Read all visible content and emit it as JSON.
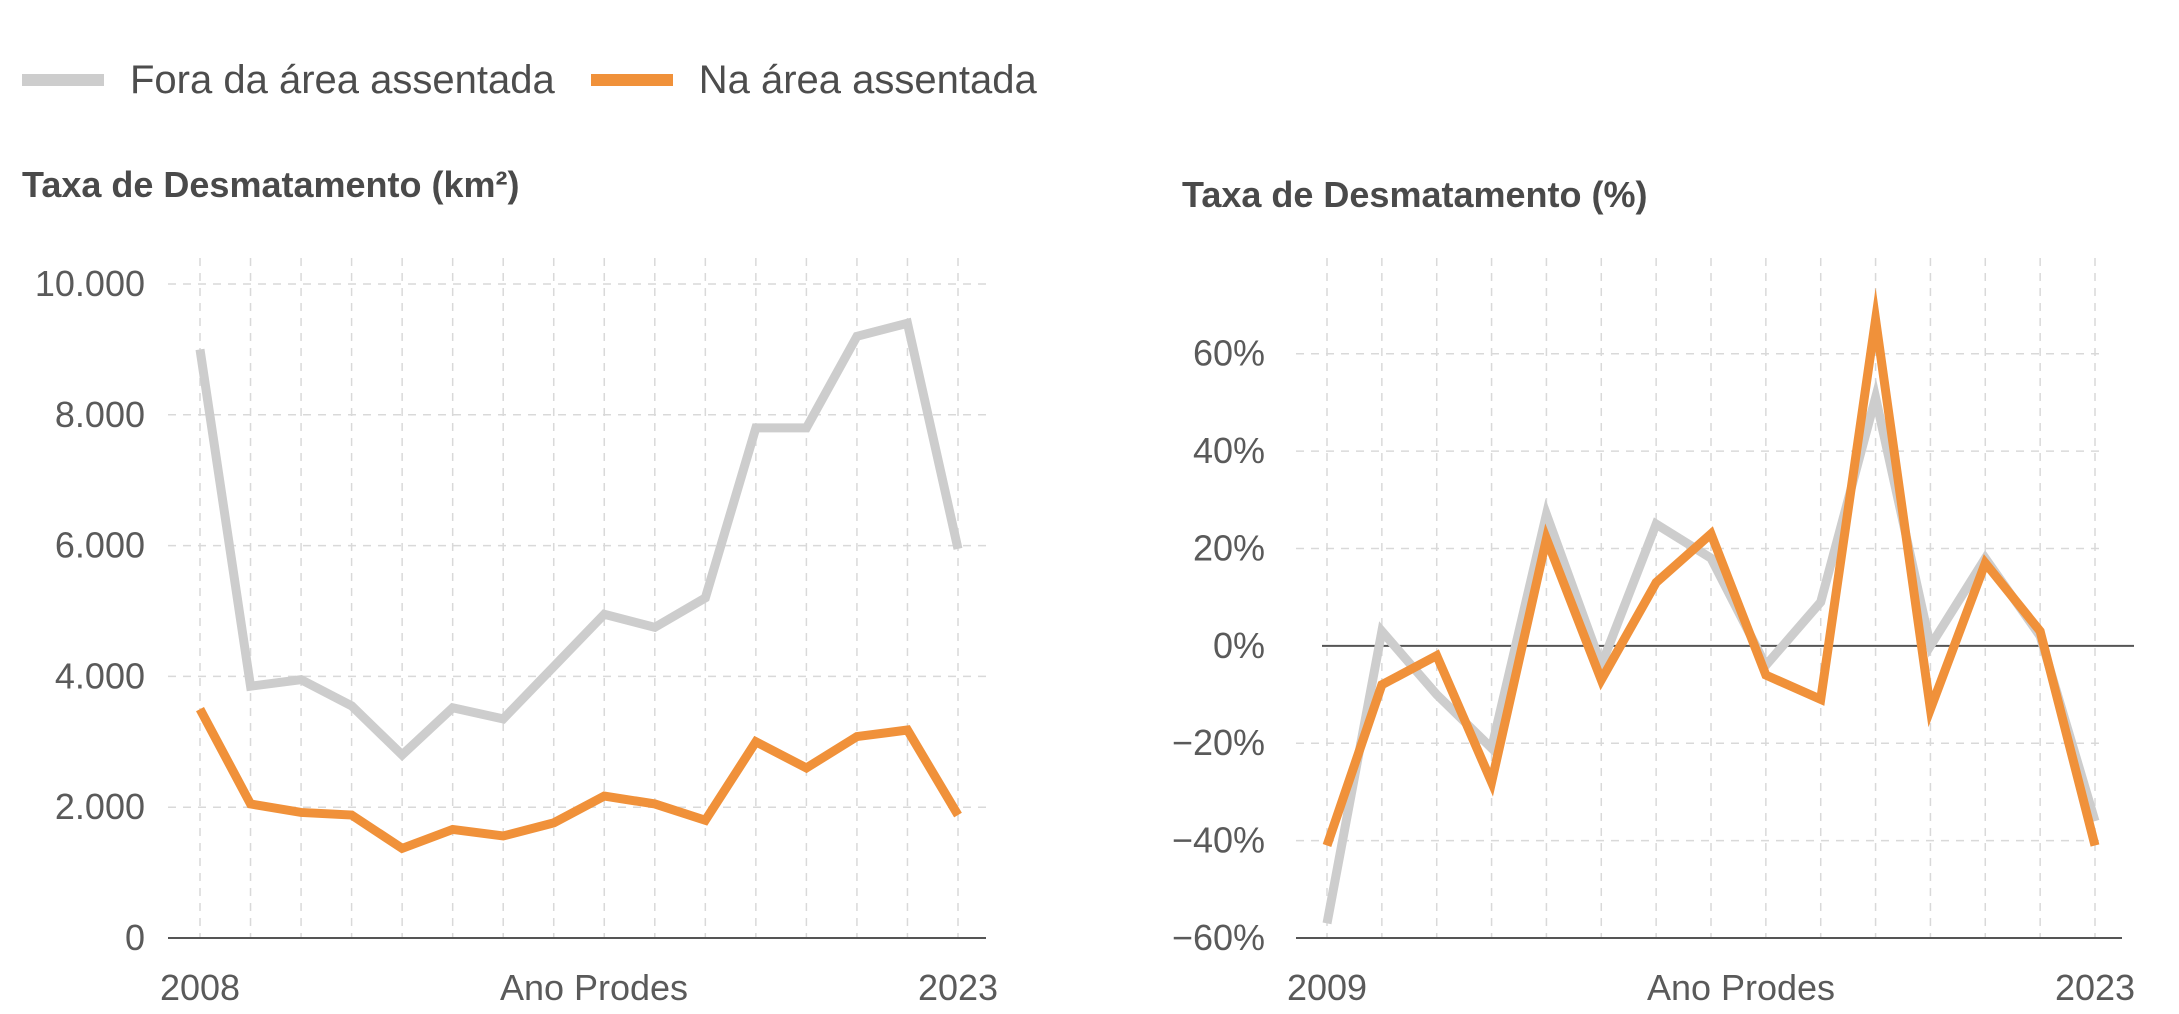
{
  "legend": [
    {
      "label": "Fora da área assentada",
      "color": "#cdcdcd"
    },
    {
      "label": "Na área assentada",
      "color": "#f0913a"
    }
  ],
  "chart_data": [
    {
      "type": "line",
      "title": "Taxa de Desmatamento (km²)",
      "xlabel": "Ano Prodes",
      "x": [
        2008,
        2009,
        2010,
        2011,
        2012,
        2013,
        2014,
        2015,
        2016,
        2017,
        2018,
        2019,
        2020,
        2021,
        2022,
        2023
      ],
      "x_tick_labels": [
        "2008",
        "2023"
      ],
      "ylim": [
        0,
        10000
      ],
      "y_ticks": [
        0,
        2000,
        4000,
        6000,
        8000,
        10000
      ],
      "y_tick_labels": [
        "0",
        "2.000",
        "4.000",
        "6.000",
        "8.000",
        "10.000"
      ],
      "grid": true,
      "series": [
        {
          "name": "Fora da área assentada",
          "color": "#cdcdcd",
          "values": [
            9000,
            3850,
            3950,
            3550,
            2800,
            3520,
            3350,
            4150,
            4950,
            4750,
            5200,
            7800,
            7800,
            9200,
            9400,
            5950
          ]
        },
        {
          "name": "Na área assentada",
          "color": "#f0913a",
          "values": [
            3500,
            2050,
            1920,
            1880,
            1370,
            1660,
            1560,
            1760,
            2170,
            2050,
            1800,
            3000,
            2600,
            3080,
            3180,
            1880
          ]
        }
      ]
    },
    {
      "type": "line",
      "title": "Taxa de Desmatamento (%)",
      "xlabel": "Ano Prodes",
      "x": [
        2009,
        2010,
        2011,
        2012,
        2013,
        2014,
        2015,
        2016,
        2017,
        2018,
        2019,
        2020,
        2021,
        2022,
        2023
      ],
      "x_tick_labels": [
        "2009",
        "2023"
      ],
      "ylim": [
        -60,
        70
      ],
      "y_ticks": [
        -60,
        -40,
        -20,
        0,
        20,
        40,
        60
      ],
      "y_tick_labels": [
        "−60%",
        "−40%",
        "−20%",
        "0%",
        "20%",
        "40%",
        "60%"
      ],
      "grid": true,
      "series": [
        {
          "name": "Fora da área assentada",
          "color": "#cdcdcd",
          "values": [
            -57,
            3,
            -10,
            -21,
            27,
            -4,
            25,
            18,
            -4,
            9,
            51,
            0,
            18,
            2,
            -36
          ]
        },
        {
          "name": "Na área assentada",
          "color": "#f0913a",
          "values": [
            -41,
            -8,
            -2,
            -28,
            22,
            -7,
            13,
            23,
            -6,
            -11,
            67,
            -13,
            17,
            3,
            -41
          ]
        }
      ]
    }
  ]
}
